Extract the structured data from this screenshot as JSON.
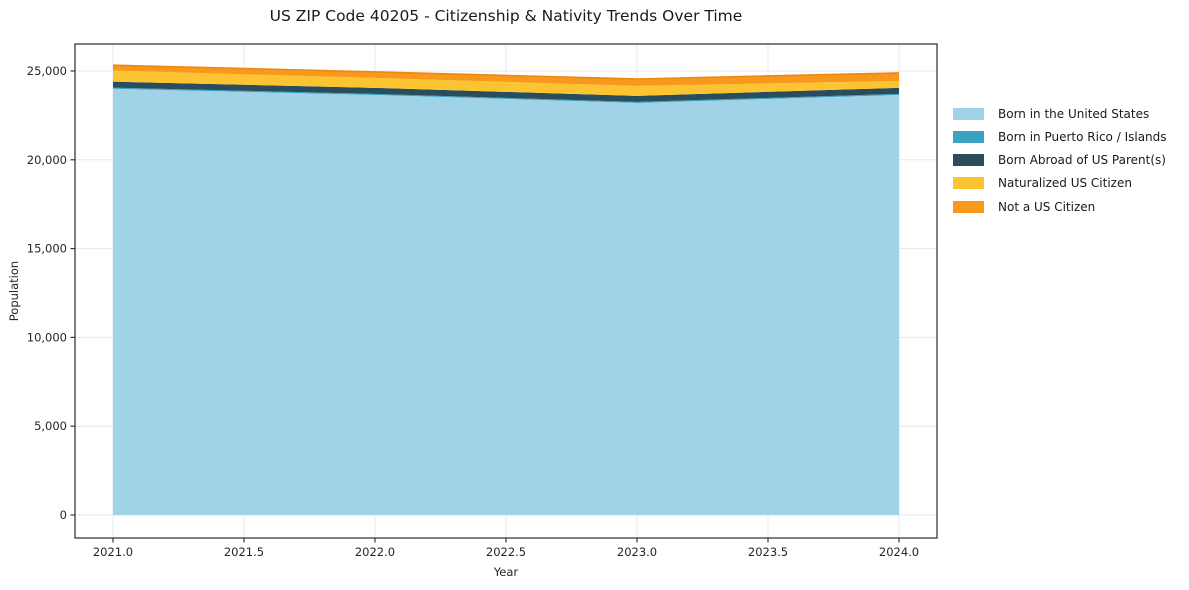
{
  "chart_data": {
    "type": "area",
    "stacked": true,
    "title": "US ZIP Code 40205 - Citizenship & Nativity Trends Over Time",
    "xlabel": "Year",
    "ylabel": "Population",
    "x": [
      2021.0,
      2022.0,
      2023.0,
      2024.0
    ],
    "series": [
      {
        "name": "Born in the United States",
        "color": "#a1d3e8",
        "values": [
          24000,
          23650,
          23200,
          23650
        ]
      },
      {
        "name": "Born in Puerto Rico / Islands",
        "color": "#3ba3c2",
        "values": [
          60,
          60,
          60,
          60
        ]
      },
      {
        "name": "Born Abroad of US Parent(s)",
        "color": "#2a4d5e",
        "values": [
          340,
          340,
          340,
          340
        ]
      },
      {
        "name": "Naturalized US Citizen",
        "color": "#fcc431",
        "values": [
          620,
          560,
          560,
          390
        ]
      },
      {
        "name": "Not a US Citizen",
        "color": "#f8981d",
        "values": [
          310,
          340,
          390,
          450
        ]
      }
    ],
    "totals": [
      25330,
      24950,
      24550,
      24890
    ],
    "xlim": [
      2020.855,
      2024.145
    ],
    "ylim": [
      -1295,
      26520
    ],
    "xticks": [
      {
        "value": 2021.0,
        "label": "2021.0"
      },
      {
        "value": 2021.5,
        "label": "2021.5"
      },
      {
        "value": 2022.0,
        "label": "2022.0"
      },
      {
        "value": 2022.5,
        "label": "2022.5"
      },
      {
        "value": 2023.0,
        "label": "2023.0"
      },
      {
        "value": 2023.5,
        "label": "2023.5"
      },
      {
        "value": 2024.0,
        "label": "2024.0"
      }
    ],
    "yticks": [
      {
        "value": 0,
        "label": "0"
      },
      {
        "value": 5000,
        "label": "5,000"
      },
      {
        "value": 10000,
        "label": "10,000"
      },
      {
        "value": 15000,
        "label": "15,000"
      },
      {
        "value": 20000,
        "label": "20,000"
      },
      {
        "value": 25000,
        "label": "25,000"
      }
    ],
    "grid": true,
    "grid_color": "#e8e8e8",
    "axis_color": "#2a2a2a",
    "tick_text_color": "#262626",
    "top_edge_color": "#ee8711",
    "legend_position": "right-outside"
  }
}
